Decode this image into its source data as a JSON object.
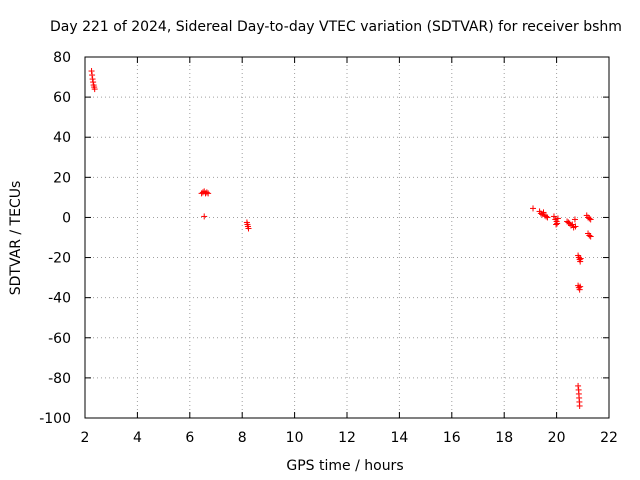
{
  "chart_data": {
    "type": "scatter",
    "title": "Day 221 of 2024, Sidereal Day-to-day VTEC variation (SDTVAR) for receiver bshm",
    "xlabel": "GPS time / hours",
    "ylabel": "SDTVAR / TECUs",
    "xlim": [
      2,
      22
    ],
    "ylim": [
      -100,
      80
    ],
    "xticks": [
      2,
      4,
      6,
      8,
      10,
      12,
      14,
      16,
      18,
      20,
      22
    ],
    "yticks": [
      -100,
      -80,
      -60,
      -40,
      -20,
      0,
      20,
      40,
      60,
      80
    ],
    "grid": true,
    "marker": "+",
    "color": "#ff0000",
    "series": [
      {
        "name": "SDTVAR",
        "points": [
          [
            2.25,
            73
          ],
          [
            2.27,
            71
          ],
          [
            2.29,
            69
          ],
          [
            2.31,
            67.5
          ],
          [
            2.33,
            66
          ],
          [
            2.35,
            65
          ],
          [
            2.37,
            64
          ],
          [
            6.45,
            12
          ],
          [
            6.5,
            12.5
          ],
          [
            6.55,
            13
          ],
          [
            6.6,
            12
          ],
          [
            6.65,
            12.5
          ],
          [
            6.7,
            12
          ],
          [
            6.55,
            0.5
          ],
          [
            8.18,
            -2.5
          ],
          [
            8.2,
            -3.5
          ],
          [
            8.22,
            -4.5
          ],
          [
            8.24,
            -5.5
          ],
          [
            19.1,
            4.5
          ],
          [
            19.35,
            3
          ],
          [
            19.4,
            2
          ],
          [
            19.45,
            1.5
          ],
          [
            19.5,
            2.5
          ],
          [
            19.55,
            1
          ],
          [
            19.6,
            0.5
          ],
          [
            19.65,
            0
          ],
          [
            19.9,
            0.5
          ],
          [
            19.95,
            -1
          ],
          [
            20.0,
            -2
          ],
          [
            20.02,
            -3
          ],
          [
            19.98,
            -3.5
          ],
          [
            20.05,
            -0.5
          ],
          [
            20.4,
            -2
          ],
          [
            20.45,
            -2.5
          ],
          [
            20.5,
            -3
          ],
          [
            20.55,
            -4
          ],
          [
            20.6,
            -3.5
          ],
          [
            20.65,
            -5
          ],
          [
            20.7,
            -1
          ],
          [
            20.72,
            -4.5
          ],
          [
            20.82,
            -19
          ],
          [
            20.85,
            -20
          ],
          [
            20.88,
            -21
          ],
          [
            20.9,
            -22
          ],
          [
            20.92,
            -20.5
          ],
          [
            20.82,
            -34
          ],
          [
            20.85,
            -35
          ],
          [
            20.88,
            -36
          ],
          [
            20.9,
            -34.5
          ],
          [
            20.82,
            -84
          ],
          [
            20.84,
            -86
          ],
          [
            20.85,
            -88
          ],
          [
            20.86,
            -90
          ],
          [
            20.87,
            -92
          ],
          [
            20.88,
            -94
          ],
          [
            21.15,
            1
          ],
          [
            21.2,
            0
          ],
          [
            21.25,
            -0.5
          ],
          [
            21.3,
            -1
          ],
          [
            21.2,
            -8
          ],
          [
            21.25,
            -9
          ],
          [
            21.3,
            -9.5
          ]
        ]
      }
    ]
  }
}
